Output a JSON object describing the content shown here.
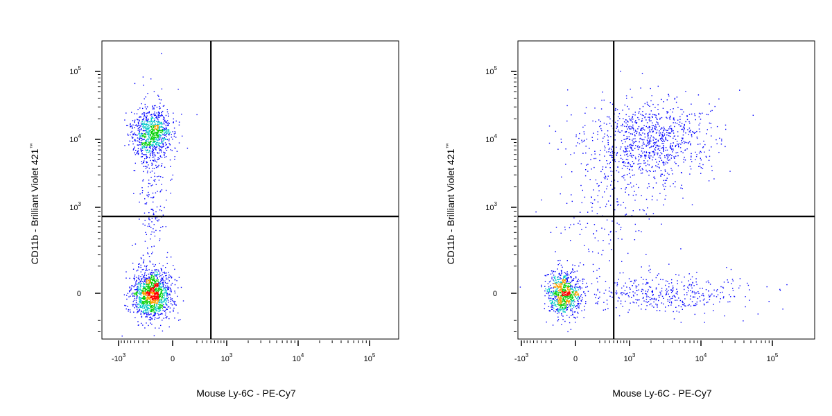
{
  "chart_data": [
    {
      "type": "scatter",
      "plot_kind": "flow cytometry density dot plot",
      "xlabel": "Mouse Ly-6C - PE-Cy7",
      "ylabel": "CD11b - Brilliant Violet 421",
      "ylabel_tm": "™",
      "x_scale": "biexponential",
      "y_scale": "biexponential",
      "x_ticks": [
        {
          "base": "-10",
          "exp": "3",
          "value": -1000
        },
        {
          "base": "0",
          "exp": "",
          "value": 0
        },
        {
          "base": "10",
          "exp": "3",
          "value": 1000
        },
        {
          "base": "10",
          "exp": "4",
          "value": 10000
        },
        {
          "base": "10",
          "exp": "5",
          "value": 100000
        }
      ],
      "y_ticks": [
        {
          "base": "0",
          "exp": "",
          "value": 0
        },
        {
          "base": "10",
          "exp": "3",
          "value": 1000
        },
        {
          "base": "10",
          "exp": "4",
          "value": 10000
        },
        {
          "base": "10",
          "exp": "5",
          "value": 100000
        }
      ],
      "quadrant_gate": {
        "x": 500,
        "y": 800
      },
      "populations": [
        {
          "x_center": -150,
          "y_center": 12000,
          "relative_size": 0.35
        },
        {
          "x_center": -150,
          "y_center": 0,
          "relative_size": 0.55
        },
        {
          "x_center": -150,
          "y_center": 2500,
          "relative_size": 0.1
        }
      ]
    },
    {
      "type": "scatter",
      "plot_kind": "flow cytometry density dot plot",
      "xlabel": "Mouse Ly-6C - PE-Cy7",
      "ylabel": "CD11b - Brilliant Violet 421",
      "ylabel_tm": "™",
      "x_scale": "biexponential",
      "y_scale": "biexponential",
      "x_ticks": [
        {
          "base": "-10",
          "exp": "3",
          "value": -1000
        },
        {
          "base": "0",
          "exp": "",
          "value": 0
        },
        {
          "base": "10",
          "exp": "3",
          "value": 1000
        },
        {
          "base": "10",
          "exp": "4",
          "value": 10000
        },
        {
          "base": "10",
          "exp": "5",
          "value": 100000
        }
      ],
      "y_ticks": [
        {
          "base": "0",
          "exp": "",
          "value": 0
        },
        {
          "base": "10",
          "exp": "3",
          "value": 1000
        },
        {
          "base": "10",
          "exp": "4",
          "value": 10000
        },
        {
          "base": "10",
          "exp": "5",
          "value": 100000
        }
      ],
      "quadrant_gate": {
        "x": 500,
        "y": 800
      },
      "populations": [
        {
          "x_center": -50,
          "y_center": 0,
          "relative_size": 0.35
        },
        {
          "x_center": 2000,
          "y_center": 10000,
          "relative_size": 0.38
        },
        {
          "x_center": 3000,
          "y_center": 0,
          "relative_size": 0.17
        },
        {
          "x_center": 300,
          "y_center": 1500,
          "relative_size": 0.1
        }
      ]
    }
  ],
  "colors": {
    "background": "#ffffff",
    "axis": "#000000",
    "gate_line": "#000000",
    "density_low": "#0000ff",
    "density_mid": "#00c8c8",
    "density_high": "#00d000",
    "density_peak": "#ff0000"
  }
}
